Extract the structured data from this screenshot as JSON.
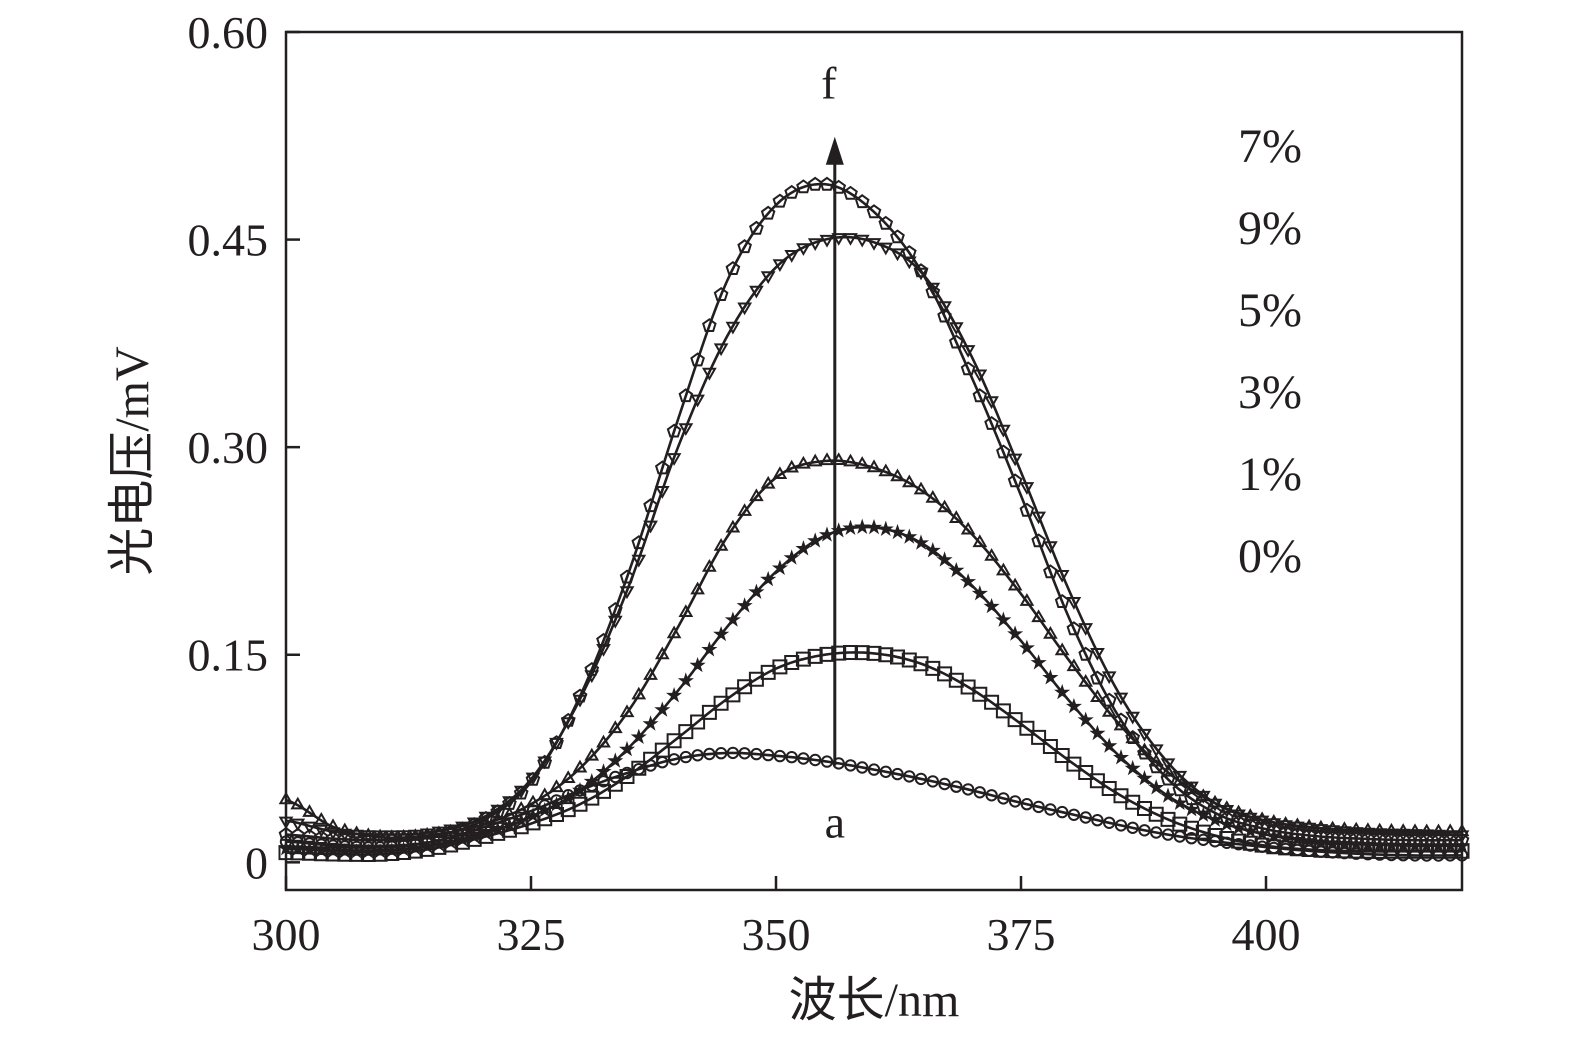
{
  "chart_data": {
    "type": "line",
    "xlabel": "波长/nm",
    "ylabel": "光电压/mV",
    "xlim": [
      300,
      420
    ],
    "ylim": [
      -0.02,
      0.6
    ],
    "x_ticks": [
      300,
      325,
      350,
      375,
      400
    ],
    "x_tick_labels": [
      "300",
      "325",
      "350",
      "375",
      "400"
    ],
    "y_ticks": [
      0,
      0.15,
      0.3,
      0.45,
      0.6
    ],
    "y_tick_labels": [
      "0",
      "0.15",
      "0.30",
      "0.45",
      "0.60"
    ],
    "grid": false,
    "legend_labels": [
      "7%",
      "9%",
      "5%",
      "3%",
      "1%",
      "0%"
    ],
    "legend_position": "top-right",
    "annotations": {
      "arrow_top_label": "f",
      "arrow_bottom_label": "a",
      "arrow_x": 356,
      "arrow_from_y": 0.07,
      "arrow_to_y": 0.52
    },
    "series": [
      {
        "marker": "circle",
        "x": [
          300,
          305,
          310,
          315,
          320,
          325,
          330,
          335,
          340,
          345,
          350,
          355,
          360,
          365,
          370,
          375,
          380,
          385,
          390,
          395,
          400,
          405,
          410,
          415,
          420
        ],
        "y": [
          0.015,
          0.012,
          0.011,
          0.015,
          0.025,
          0.037,
          0.052,
          0.065,
          0.075,
          0.079,
          0.077,
          0.073,
          0.067,
          0.06,
          0.052,
          0.043,
          0.035,
          0.027,
          0.02,
          0.015,
          0.011,
          0.008,
          0.006,
          0.005,
          0.005
        ]
      },
      {
        "marker": "square",
        "x": [
          300,
          305,
          310,
          315,
          320,
          325,
          330,
          335,
          340,
          345,
          350,
          355,
          360,
          365,
          370,
          375,
          380,
          385,
          390,
          395,
          400,
          405,
          410,
          415,
          420
        ],
        "y": [
          0.007,
          0.006,
          0.006,
          0.01,
          0.018,
          0.028,
          0.042,
          0.063,
          0.09,
          0.118,
          0.14,
          0.15,
          0.151,
          0.143,
          0.125,
          0.1,
          0.073,
          0.049,
          0.031,
          0.019,
          0.012,
          0.009,
          0.008,
          0.008,
          0.008
        ]
      },
      {
        "marker": "star",
        "x": [
          300,
          305,
          310,
          315,
          320,
          325,
          330,
          335,
          340,
          345,
          350,
          355,
          360,
          365,
          370,
          375,
          380,
          385,
          390,
          395,
          400,
          405,
          410,
          415,
          420
        ],
        "y": [
          0.01,
          0.008,
          0.008,
          0.012,
          0.02,
          0.033,
          0.052,
          0.083,
          0.124,
          0.17,
          0.21,
          0.236,
          0.242,
          0.23,
          0.2,
          0.16,
          0.116,
          0.077,
          0.048,
          0.03,
          0.02,
          0.015,
          0.013,
          0.012,
          0.012
        ]
      },
      {
        "marker": "triangle-up",
        "x": [
          300,
          305,
          310,
          315,
          320,
          325,
          330,
          335,
          340,
          345,
          350,
          355,
          360,
          365,
          370,
          375,
          380,
          385,
          390,
          395,
          400,
          405,
          410,
          415,
          420
        ],
        "y": [
          0.045,
          0.025,
          0.018,
          0.02,
          0.027,
          0.042,
          0.068,
          0.11,
          0.17,
          0.235,
          0.278,
          0.29,
          0.285,
          0.268,
          0.237,
          0.194,
          0.145,
          0.1,
          0.065,
          0.042,
          0.03,
          0.025,
          0.023,
          0.022,
          0.022
        ]
      },
      {
        "marker": "pentagon",
        "x": [
          300,
          305,
          310,
          315,
          320,
          325,
          330,
          335,
          340,
          345,
          350,
          355,
          360,
          365,
          370,
          375,
          380,
          385,
          390,
          395,
          400,
          405,
          410,
          415,
          420
        ],
        "y": [
          0.02,
          0.017,
          0.016,
          0.019,
          0.03,
          0.058,
          0.12,
          0.21,
          0.32,
          0.42,
          0.475,
          0.49,
          0.47,
          0.425,
          0.35,
          0.265,
          0.175,
          0.105,
          0.06,
          0.035,
          0.024,
          0.019,
          0.017,
          0.016,
          0.016
        ]
      },
      {
        "marker": "triangle-down",
        "x": [
          300,
          305,
          310,
          315,
          320,
          325,
          330,
          335,
          340,
          345,
          350,
          355,
          360,
          365,
          370,
          375,
          380,
          385,
          390,
          395,
          400,
          405,
          410,
          415,
          420
        ],
        "y": [
          0.03,
          0.022,
          0.02,
          0.022,
          0.032,
          0.06,
          0.118,
          0.2,
          0.3,
          0.38,
          0.43,
          0.45,
          0.448,
          0.425,
          0.365,
          0.282,
          0.195,
          0.122,
          0.072,
          0.042,
          0.03,
          0.025,
          0.022,
          0.021,
          0.02
        ]
      }
    ]
  }
}
